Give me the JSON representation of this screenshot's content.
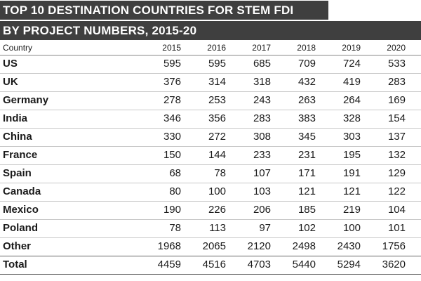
{
  "title": [
    "TOP 10 DESTINATION COUNTRIES FOR STEM FDI",
    "BY PROJECT NUMBERS, 2015-20"
  ],
  "table": {
    "header": [
      "Country",
      "2015",
      "2016",
      "2017",
      "2018",
      "2019",
      "2020"
    ],
    "rows": [
      [
        "US",
        595,
        595,
        685,
        709,
        724,
        533
      ],
      [
        "UK",
        376,
        314,
        318,
        432,
        419,
        283
      ],
      [
        "Germany",
        278,
        253,
        243,
        263,
        264,
        169
      ],
      [
        "India",
        346,
        356,
        283,
        383,
        328,
        154
      ],
      [
        "China",
        330,
        272,
        308,
        345,
        303,
        137
      ],
      [
        "France",
        150,
        144,
        233,
        231,
        195,
        132
      ],
      [
        "Spain",
        68,
        78,
        107,
        171,
        191,
        129
      ],
      [
        "Canada",
        80,
        100,
        103,
        121,
        121,
        122
      ],
      [
        "Mexico",
        190,
        226,
        206,
        185,
        219,
        104
      ],
      [
        "Poland",
        78,
        113,
        97,
        102,
        100,
        101
      ],
      [
        "Other",
        1968,
        2065,
        2120,
        2498,
        2430,
        1756
      ],
      [
        "Total",
        4459,
        4516,
        4703,
        5440,
        5294,
        3620
      ]
    ]
  }
}
